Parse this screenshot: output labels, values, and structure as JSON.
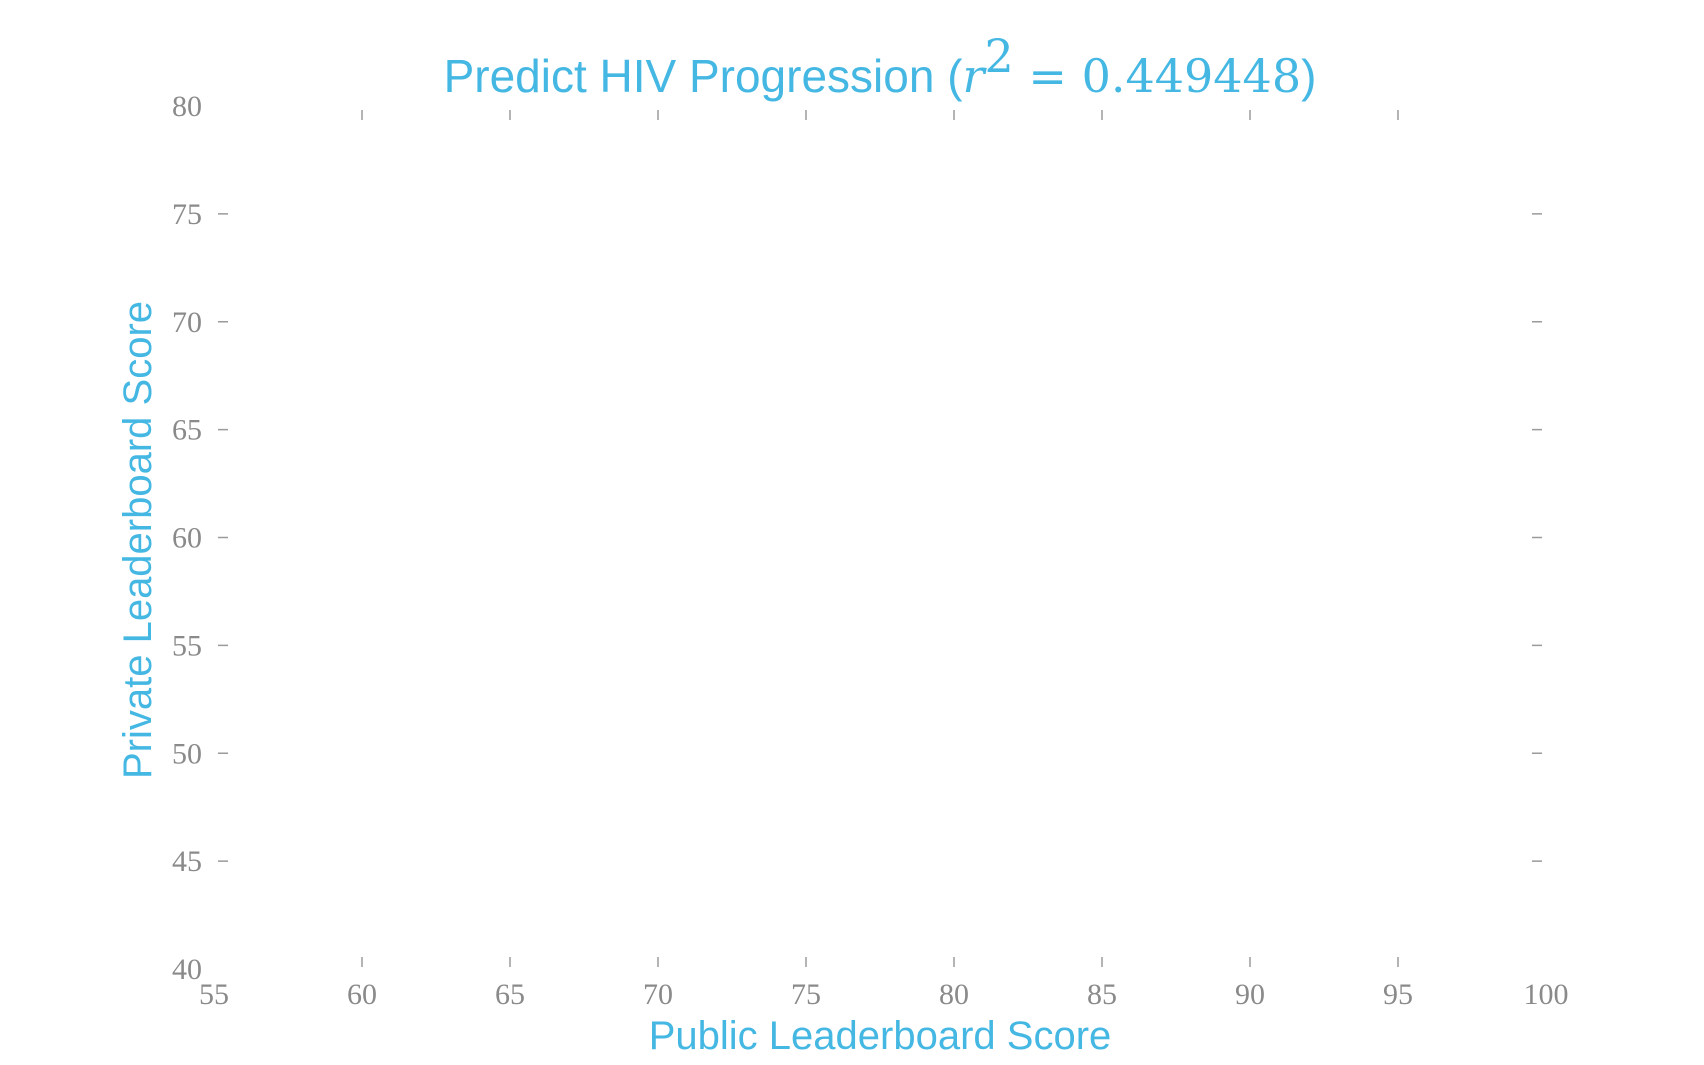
{
  "chart_data": {
    "type": "scatter",
    "title_prefix": "Predict HIV Progression (",
    "title_math_var": "r",
    "title_math_exp": "2",
    "title_math_rest": " = 0.449448",
    "title_suffix": ")",
    "xlabel": "Public Leaderboard Score",
    "ylabel": "Private Leaderboard Score",
    "xlim": [
      55,
      100
    ],
    "ylim": [
      40,
      80
    ],
    "xticks": [
      55,
      60,
      65,
      70,
      75,
      80,
      85,
      90,
      95,
      100
    ],
    "yticks": [
      40,
      45,
      50,
      55,
      60,
      65,
      70,
      75,
      80
    ],
    "grid": false,
    "points": [],
    "colors": {
      "accent": "#45b7e3",
      "tick": "#8a8a8a",
      "tick_mark": "#9a9a9a",
      "background": "#ffffff"
    }
  }
}
